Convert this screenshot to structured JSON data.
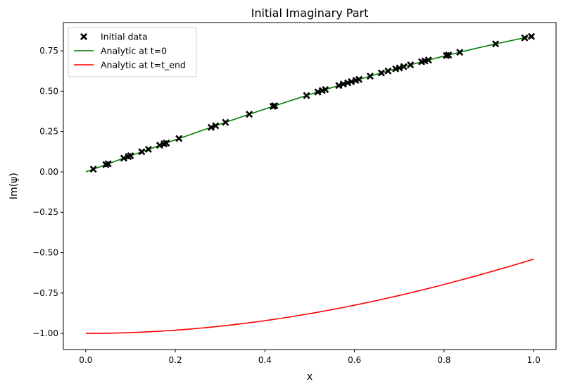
{
  "chart_data": {
    "type": "line",
    "title": "Initial Imaginary Part",
    "xlabel": "x",
    "ylabel": "Im(ψ)",
    "xlim": [
      -0.05,
      1.05
    ],
    "ylim": [
      -1.1,
      0.925
    ],
    "xticks": [
      0.0,
      0.2,
      0.4,
      0.6,
      0.8,
      1.0
    ],
    "xtick_labels": [
      "0.0",
      "0.2",
      "0.4",
      "0.6",
      "0.8",
      "1.0"
    ],
    "yticks": [
      0.75,
      0.5,
      0.25,
      0.0,
      -0.25,
      -0.5,
      -0.75,
      -1.0
    ],
    "ytick_labels": [
      "0.75",
      "0.50",
      "0.25",
      "0.00",
      "−0.25",
      "−0.50",
      "−0.75",
      "−1.00"
    ],
    "grid": false,
    "legend_position": "top-left",
    "series": [
      {
        "name": "Initial data",
        "kind": "scatter",
        "marker": "x",
        "color": "#000000",
        "points": [
          [
            0.017,
            0.017
          ],
          [
            0.045,
            0.045
          ],
          [
            0.05,
            0.05
          ],
          [
            0.085,
            0.085
          ],
          [
            0.095,
            0.095
          ],
          [
            0.1,
            0.1
          ],
          [
            0.125,
            0.125
          ],
          [
            0.14,
            0.14
          ],
          [
            0.165,
            0.165
          ],
          [
            0.175,
            0.174
          ],
          [
            0.18,
            0.179
          ],
          [
            0.208,
            0.207
          ],
          [
            0.28,
            0.276
          ],
          [
            0.29,
            0.286
          ],
          [
            0.312,
            0.307
          ],
          [
            0.365,
            0.357
          ],
          [
            0.418,
            0.406
          ],
          [
            0.422,
            0.41
          ],
          [
            0.493,
            0.473
          ],
          [
            0.518,
            0.495
          ],
          [
            0.528,
            0.504
          ],
          [
            0.535,
            0.51
          ],
          [
            0.565,
            0.535
          ],
          [
            0.575,
            0.544
          ],
          [
            0.585,
            0.552
          ],
          [
            0.593,
            0.559
          ],
          [
            0.603,
            0.567
          ],
          [
            0.61,
            0.573
          ],
          [
            0.635,
            0.593
          ],
          [
            0.66,
            0.613
          ],
          [
            0.675,
            0.625
          ],
          [
            0.692,
            0.638
          ],
          [
            0.7,
            0.644
          ],
          [
            0.71,
            0.652
          ],
          [
            0.725,
            0.663
          ],
          [
            0.75,
            0.682
          ],
          [
            0.757,
            0.687
          ],
          [
            0.765,
            0.693
          ],
          [
            0.805,
            0.721
          ],
          [
            0.81,
            0.724
          ],
          [
            0.835,
            0.741
          ],
          [
            0.915,
            0.793
          ],
          [
            0.98,
            0.83
          ],
          [
            0.995,
            0.839
          ]
        ]
      },
      {
        "name": "Analytic at t=0",
        "kind": "line",
        "color": "#008000",
        "formula": "sin(x)",
        "x_range": [
          0,
          1
        ]
      },
      {
        "name": "Analytic at t=t_end",
        "kind": "line",
        "color": "#ff0000",
        "formula": "-cos(x)",
        "x_range": [
          0,
          1
        ]
      }
    ]
  }
}
